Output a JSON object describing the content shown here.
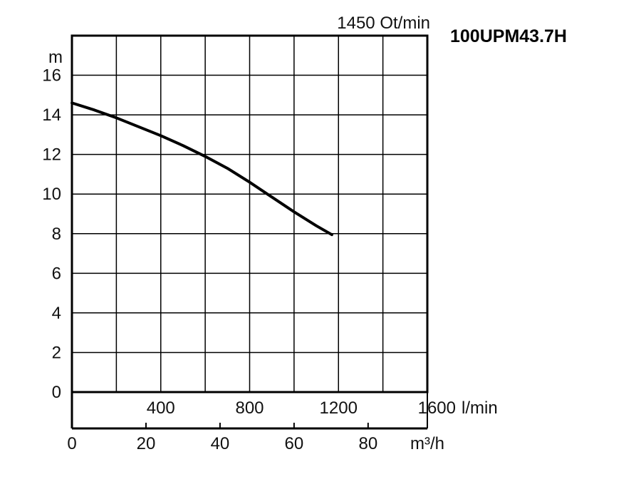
{
  "chart_data": {
    "type": "line",
    "title": "100UPM43.7H",
    "speed_label": "1450 Ot/min",
    "ylabel": "m",
    "ylim": [
      0,
      18
    ],
    "y_ticks": [
      "0",
      "2",
      "4",
      "6",
      "8",
      "10",
      "12",
      "14",
      "16"
    ],
    "x_flow_lpm": {
      "unit": "l/min",
      "range": [
        0,
        1600
      ],
      "ticks": [
        "400",
        "800",
        "1200",
        "1600"
      ]
    },
    "x_flow_m3h": {
      "unit": "m³/h",
      "range": [
        0,
        96
      ],
      "ticks": [
        "0",
        "20",
        "40",
        "60",
        "80"
      ]
    },
    "grid": true,
    "series": [
      {
        "x": [
          0,
          100,
          200,
          300,
          400,
          500,
          600,
          700,
          800,
          900,
          1000,
          1100,
          1170
        ],
        "y": [
          14.6,
          14.25,
          13.85,
          13.4,
          12.95,
          12.45,
          11.9,
          11.3,
          10.6,
          9.85,
          9.1,
          8.4,
          7.95
        ]
      }
    ]
  }
}
